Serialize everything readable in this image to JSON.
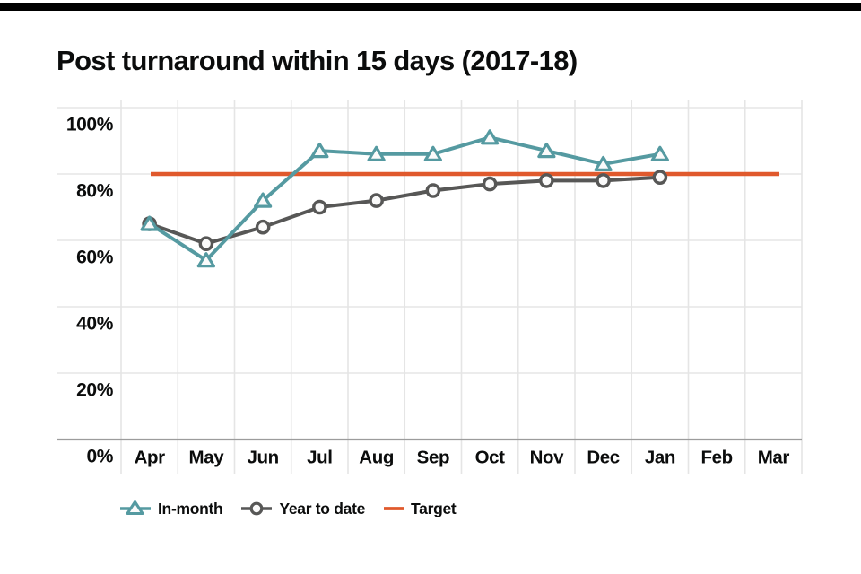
{
  "page": {
    "title": "Post turnaround within 15 days (2017-18)"
  },
  "chart_data": {
    "type": "line",
    "title": "Post turnaround within 15 days (2017-18)",
    "categories": [
      "Apr",
      "May",
      "Jun",
      "Jul",
      "Aug",
      "Sep",
      "Oct",
      "Nov",
      "Dec",
      "Jan",
      "Feb",
      "Mar"
    ],
    "series": [
      {
        "name": "In-month",
        "marker": "triangle",
        "color": "#559aa1",
        "values": [
          65,
          54,
          72,
          87,
          86,
          86,
          91,
          87,
          83,
          86,
          null,
          null
        ]
      },
      {
        "name": "Year to date",
        "marker": "circle",
        "color": "#575756",
        "values": [
          65,
          59,
          64,
          70,
          72,
          75,
          77,
          78,
          78,
          79,
          null,
          null
        ]
      }
    ],
    "reference_line": {
      "name": "Target",
      "color": "#e0592c",
      "value": 80
    },
    "y_axis": {
      "min": 0,
      "max": 100,
      "tick_step": 20,
      "tick_labels": [
        "0%",
        "20%",
        "40%",
        "60%",
        "80%",
        "100%"
      ]
    },
    "grid": true,
    "legend_position": "bottom",
    "legend_entries": [
      "In-month",
      "Year to date",
      "Target"
    ]
  },
  "style": {
    "teal": "#559aa1",
    "grey": "#575756",
    "orange": "#e0592c",
    "text": "#0b0c0c",
    "gridline": "#e5e5e5",
    "axis_line": "#9c9c9c",
    "marker_fill": "#fafafa",
    "top_bar": "#000000"
  }
}
